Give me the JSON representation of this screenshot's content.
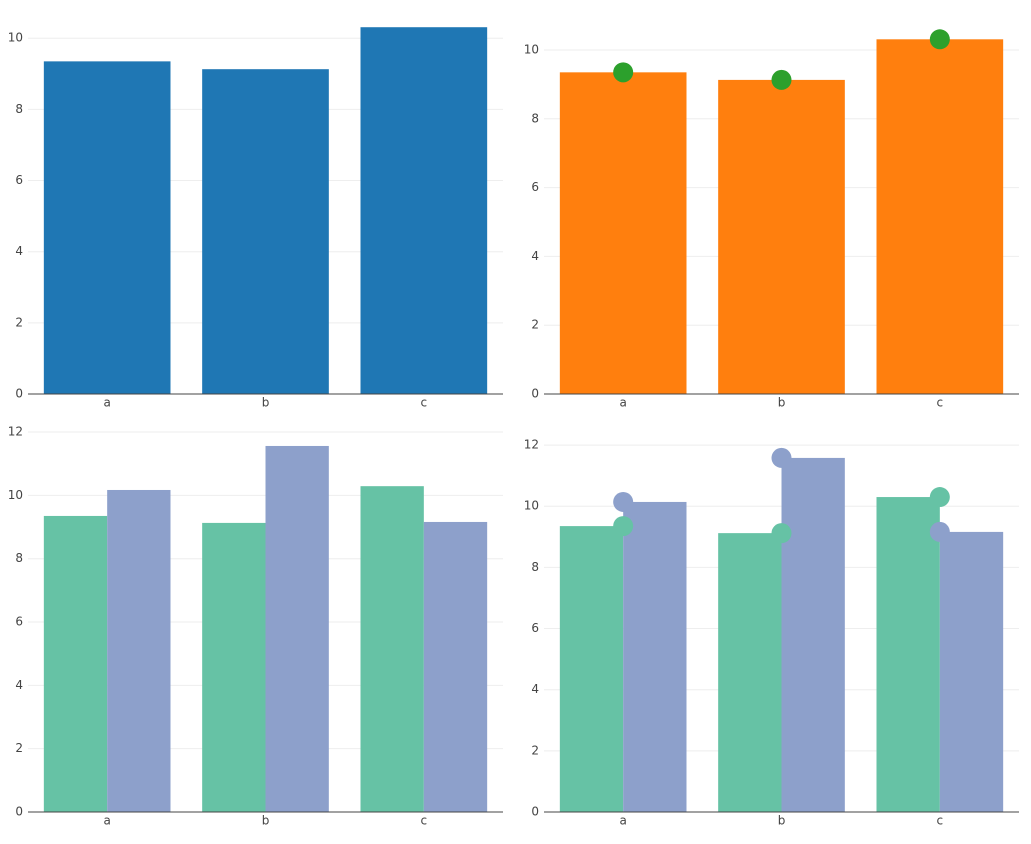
{
  "chart_data": [
    {
      "type": "bar",
      "categories": [
        "a",
        "b",
        "c"
      ],
      "ylim": [
        0,
        10.85
      ],
      "yticks": [
        0,
        2,
        4,
        6,
        8,
        10
      ],
      "grid": true,
      "series": [
        {
          "type": "bar",
          "color": "#1f77b4",
          "values": [
            9.35,
            9.13,
            10.31
          ]
        }
      ]
    },
    {
      "type": "bar",
      "categories": [
        "a",
        "b",
        "c"
      ],
      "ylim": [
        0,
        11.22
      ],
      "yticks": [
        0,
        2,
        4,
        6,
        8,
        10
      ],
      "grid": true,
      "series": [
        {
          "type": "bar",
          "color": "#ff7f0e",
          "values": [
            9.35,
            9.13,
            10.31
          ]
        },
        {
          "type": "scatter",
          "color": "#2ca02c",
          "values": [
            9.35,
            9.13,
            10.31
          ]
        }
      ]
    },
    {
      "type": "bar",
      "categories": [
        "a",
        "b",
        "c"
      ],
      "ylim": [
        0,
        12.38
      ],
      "yticks": [
        0,
        2,
        4,
        6,
        8,
        10,
        12
      ],
      "grid": true,
      "series": [
        {
          "type": "bar",
          "color": "#66c2a5",
          "values": [
            9.35,
            9.13,
            10.29
          ]
        },
        {
          "type": "bar",
          "color": "#8da0cb",
          "values": [
            10.17,
            11.56,
            9.16
          ]
        }
      ]
    },
    {
      "type": "bar",
      "categories": [
        "a",
        "b",
        "c"
      ],
      "ylim": [
        0,
        12.82
      ],
      "yticks": [
        0,
        2,
        4,
        6,
        8,
        10,
        12
      ],
      "grid": true,
      "series": [
        {
          "type": "bar",
          "color": "#66c2a5",
          "values": [
            9.35,
            9.12,
            10.3
          ]
        },
        {
          "type": "bar",
          "color": "#8da0cb",
          "values": [
            10.14,
            11.58,
            9.16
          ]
        },
        {
          "type": "scatter",
          "color": "#66c2a5",
          "values": [
            9.35,
            9.12,
            10.3
          ]
        },
        {
          "type": "scatter",
          "color": "#8da0cb",
          "values": [
            10.14,
            11.58,
            9.16
          ]
        }
      ]
    }
  ]
}
